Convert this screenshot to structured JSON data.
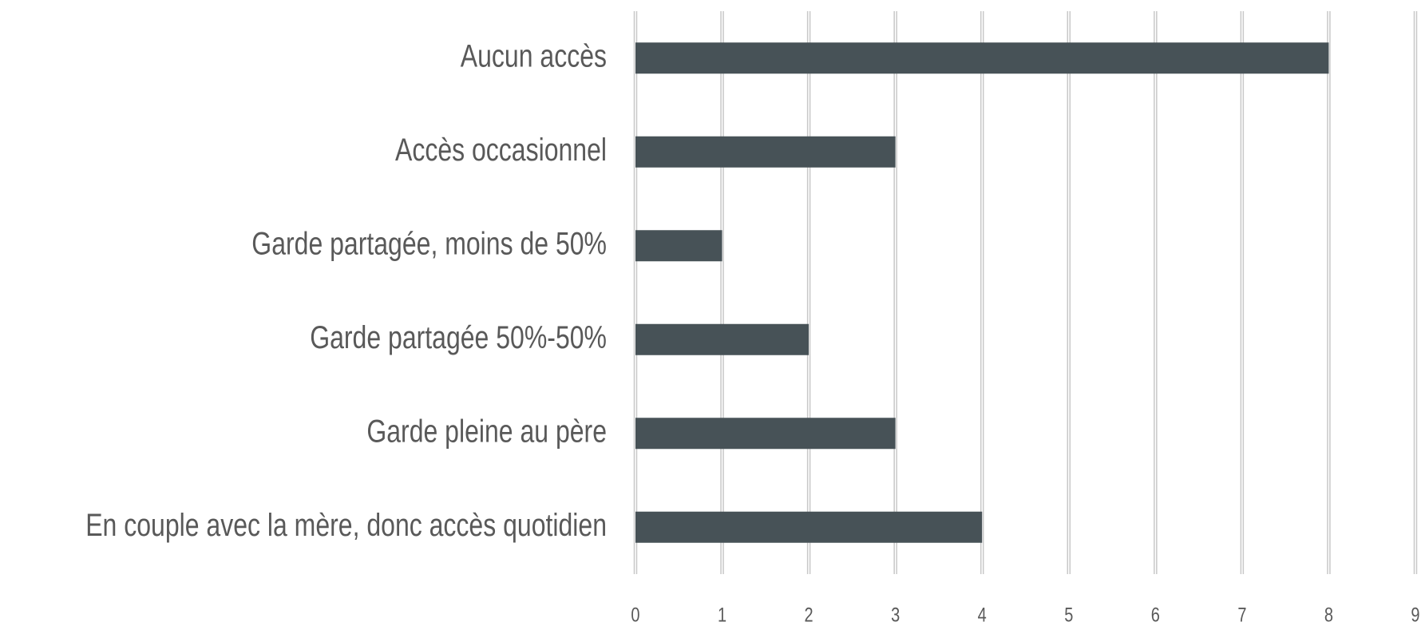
{
  "chart_data": {
    "type": "barh",
    "categories": [
      "Aucun accès",
      "Accès occasionnel",
      "Garde partagée, moins de 50%",
      "Garde partagée 50%-50%",
      "Garde pleine au père",
      "En couple avec la mère, donc accès quotidien"
    ],
    "values": [
      8,
      3,
      1,
      2,
      3,
      4
    ],
    "color": "#475257",
    "xlim": [
      0,
      9
    ],
    "xticks": [
      0,
      1,
      2,
      3,
      4,
      5,
      6,
      7,
      8,
      9
    ],
    "grid": true
  }
}
